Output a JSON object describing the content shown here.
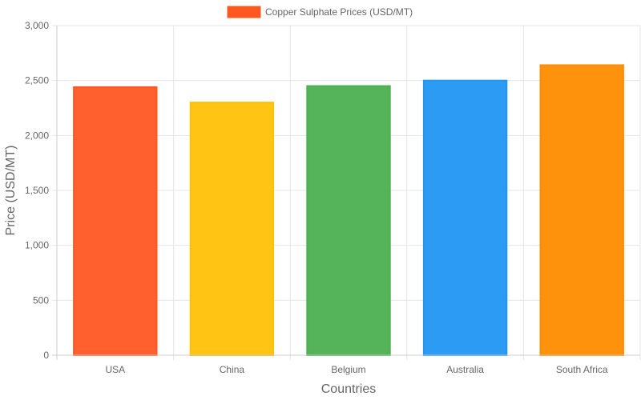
{
  "chart_data": {
    "type": "bar",
    "title": "",
    "categories": [
      "USA",
      "China",
      "Belgium",
      "Australia",
      "South Africa"
    ],
    "series": [
      {
        "name": "Copper Sulphate Prices (USD/MT)",
        "values": [
          2440,
          2300,
          2450,
          2500,
          2640
        ]
      }
    ],
    "bar_colors": [
      "#FF5722",
      "#FFC107",
      "#4CAF50",
      "#2196F3",
      "#FF8C00"
    ],
    "legend_color": "#FF5722",
    "xlabel": "Countries",
    "ylabel": "Price (USD/MT)",
    "ylim": [
      0,
      3000
    ],
    "yticks": [
      "0",
      "500",
      "1,000",
      "1,500",
      "2,000",
      "2,500",
      "3,000"
    ],
    "ytick_values": [
      0,
      500,
      1000,
      1500,
      2000,
      2500,
      3000
    ],
    "grid": true,
    "legend_position": "top"
  }
}
